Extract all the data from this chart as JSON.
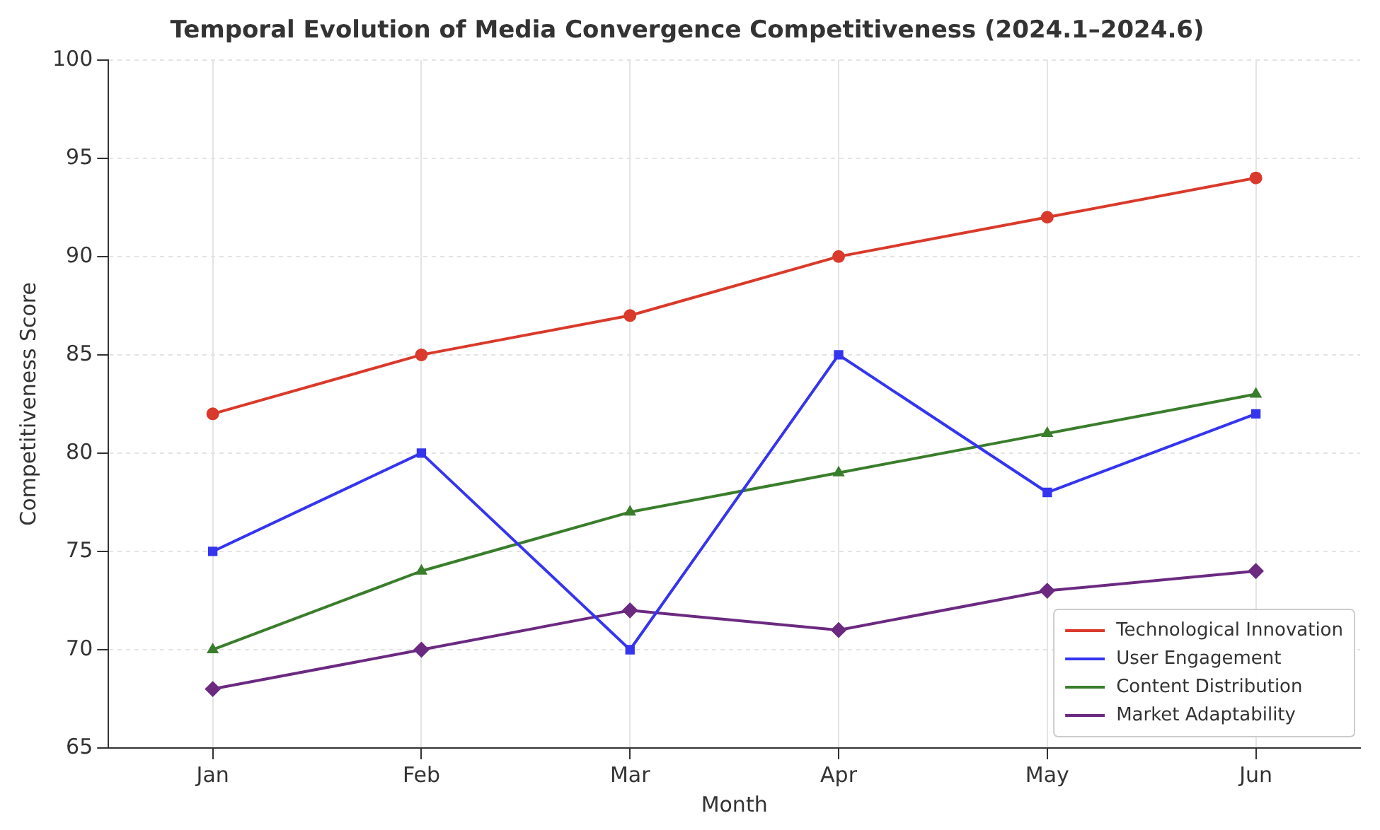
{
  "chart_data": {
    "type": "line",
    "title": "Temporal Evolution of Media Convergence Competitiveness (2024.1–2024.6)",
    "xlabel": "Month",
    "ylabel": "Competitiveness Score",
    "categories": [
      "Jan",
      "Feb",
      "Mar",
      "Apr",
      "May",
      "Jun"
    ],
    "series": [
      {
        "name": "Technological Innovation",
        "color": "#d93a2b",
        "marker": "circle",
        "values": [
          82,
          85,
          87,
          90,
          92,
          94
        ]
      },
      {
        "name": "User Engagement",
        "color": "#3535f0",
        "marker": "square",
        "values": [
          75,
          80,
          70,
          85,
          78,
          82
        ]
      },
      {
        "name": "Content Distribution",
        "color": "#3a7d2c",
        "marker": "triangle",
        "values": [
          70,
          74,
          77,
          79,
          81,
          83
        ]
      },
      {
        "name": "Market Adaptability",
        "color": "#6b2a80",
        "marker": "diamond",
        "values": [
          68,
          70,
          72,
          71,
          73,
          74
        ]
      }
    ],
    "ylim": [
      65,
      100
    ],
    "yticks": [
      65,
      70,
      75,
      80,
      85,
      90,
      95,
      100
    ],
    "grid": true,
    "legend": "bottom right",
    "line_style": "solid"
  }
}
